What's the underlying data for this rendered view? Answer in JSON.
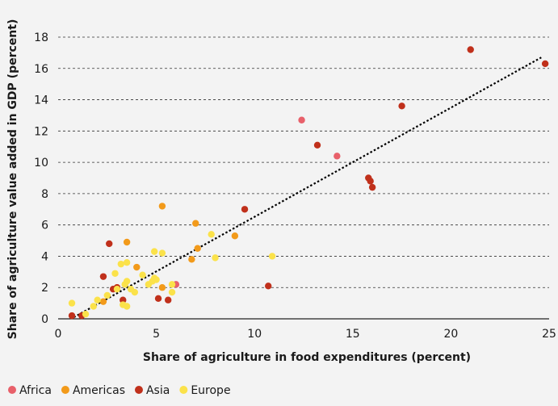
{
  "chart_data": {
    "type": "scatter",
    "title": "",
    "xlabel": "Share of agriculture in food expenditures (percent)",
    "ylabel": "Share of agriculture value added in GDP (percent)",
    "xlim": [
      0,
      25
    ],
    "ylim": [
      0,
      18
    ],
    "x_ticks": [
      "0",
      "5",
      "10",
      "15",
      "20",
      "25"
    ],
    "y_ticks": [
      "0",
      "2",
      "4",
      "6",
      "8",
      "10",
      "12",
      "14",
      "16",
      "18"
    ],
    "grid": "horizontal dashed",
    "legend_position": "bottom-left",
    "trendline": {
      "style": "dotted",
      "color": "#000000",
      "from": [
        0.8,
        0.1
      ],
      "to": [
        24.6,
        16.7
      ]
    },
    "series": [
      {
        "name": "Africa",
        "color": "#e8606a",
        "points": [
          [
            12.4,
            12.7
          ],
          [
            14.2,
            10.4
          ],
          [
            6.0,
            2.2
          ]
        ]
      },
      {
        "name": "Americas",
        "color": "#f29a1a",
        "points": [
          [
            5.3,
            7.2
          ],
          [
            7.0,
            6.1
          ],
          [
            9.0,
            5.3
          ],
          [
            7.1,
            4.5
          ],
          [
            6.8,
            3.8
          ],
          [
            3.5,
            4.9
          ],
          [
            4.0,
            3.3
          ],
          [
            3.0,
            2.0
          ],
          [
            2.3,
            1.1
          ],
          [
            5.3,
            2.0
          ]
        ]
      },
      {
        "name": "Asia",
        "color": "#c0301b",
        "points": [
          [
            21.0,
            17.2
          ],
          [
            24.8,
            16.3
          ],
          [
            17.5,
            13.6
          ],
          [
            13.2,
            11.1
          ],
          [
            15.8,
            9.0
          ],
          [
            15.9,
            8.8
          ],
          [
            16.0,
            8.4
          ],
          [
            9.5,
            7.0
          ],
          [
            10.7,
            2.1
          ],
          [
            2.6,
            4.8
          ],
          [
            2.3,
            2.7
          ],
          [
            3.0,
            2.0
          ],
          [
            3.3,
            1.2
          ],
          [
            5.1,
            1.3
          ],
          [
            5.6,
            1.2
          ],
          [
            0.7,
            0.2
          ],
          [
            1.2,
            0.2
          ],
          [
            2.8,
            1.9
          ]
        ]
      },
      {
        "name": "Europe",
        "color": "#fbe24a",
        "points": [
          [
            7.8,
            5.4
          ],
          [
            10.9,
            4.0
          ],
          [
            8.0,
            3.9
          ],
          [
            4.9,
            4.3
          ],
          [
            5.3,
            4.2
          ],
          [
            3.2,
            3.5
          ],
          [
            3.5,
            3.6
          ],
          [
            5.8,
            2.2
          ],
          [
            4.6,
            2.2
          ],
          [
            5.0,
            2.5
          ],
          [
            4.8,
            2.4
          ],
          [
            4.3,
            2.8
          ],
          [
            3.7,
            1.9
          ],
          [
            3.4,
            2.2
          ],
          [
            3.5,
            2.4
          ],
          [
            3.9,
            1.7
          ],
          [
            5.8,
            1.7
          ],
          [
            3.3,
            0.9
          ],
          [
            3.5,
            0.8
          ],
          [
            2.0,
            1.2
          ],
          [
            1.8,
            0.8
          ],
          [
            2.5,
            1.5
          ],
          [
            3.0,
            1.9
          ],
          [
            1.4,
            0.3
          ],
          [
            0.7,
            1.0
          ],
          [
            2.9,
            2.9
          ],
          [
            4.9,
            2.6
          ]
        ]
      }
    ]
  }
}
